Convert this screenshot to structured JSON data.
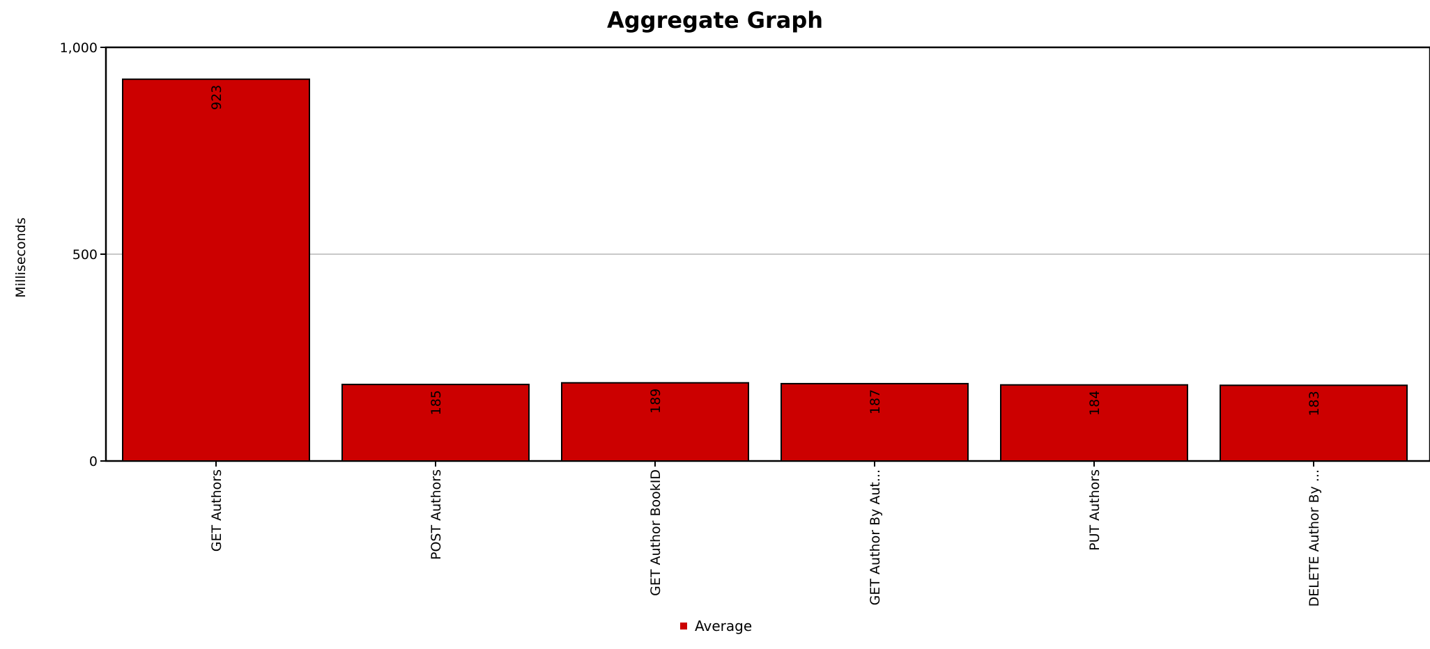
{
  "chart_data": {
    "type": "bar",
    "title": "Aggregate Graph",
    "xlabel": "",
    "ylabel": "Milliseconds",
    "categories": [
      "GET Authors",
      "POST Authors",
      "GET Author BookID",
      "GET Author By Aut...",
      "PUT Authors",
      "DELETE Author By ..."
    ],
    "series": [
      {
        "name": "Average",
        "values": [
          923,
          185,
          189,
          187,
          184,
          183
        ],
        "color": "#cc0000"
      }
    ],
    "data_labels": [
      "923",
      "185",
      "189",
      "187",
      "184",
      "183"
    ],
    "ylim": [
      0,
      1000
    ],
    "yticks": [
      0,
      500,
      1000
    ],
    "ytick_labels": [
      "0",
      "500",
      "1,000"
    ],
    "grid": true,
    "legend_position": "bottom-center"
  }
}
